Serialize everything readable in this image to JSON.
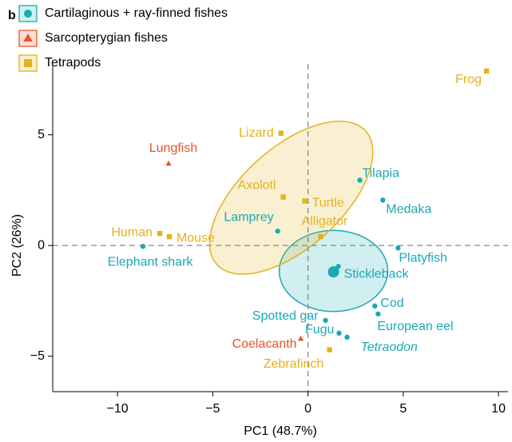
{
  "chart_data": {
    "type": "scatter",
    "panel_label": "b",
    "xlabel": "PC1 (48.7%)",
    "ylabel": "PC2 (26%)",
    "xlim": [
      -13.4,
      10.5
    ],
    "ylim": [
      -6.6,
      8.2
    ],
    "xticks": [
      {
        "value": -10,
        "label": "−10"
      },
      {
        "value": -5,
        "label": "−5"
      },
      0,
      5,
      10
    ],
    "yticks": [
      {
        "value": -5,
        "label": "−5"
      },
      0,
      5
    ],
    "ref_x": 0,
    "ref_y": 0,
    "series": [
      {
        "name": "Cartilaginous + ray-finned fishes",
        "color": "#1aa9b5",
        "marker": "circle",
        "labels": [
          "Tilapia",
          "Medaka",
          "Lamprey",
          "Elephant shark",
          "Platyfish",
          "Stickleback",
          null,
          "Cod",
          "European eel",
          "Spotted gar",
          "Fugu",
          "Tetraodon"
        ],
        "x": [
          2.72,
          3.93,
          -1.59,
          -8.66,
          4.73,
          1.34,
          1.59,
          3.51,
          3.68,
          0.92,
          1.63,
          2.05
        ],
        "y": [
          2.95,
          2.05,
          0.65,
          -0.04,
          -0.11,
          -1.19,
          -0.94,
          -2.73,
          -3.09,
          -3.38,
          -3.96,
          -4.14
        ],
        "sizes": [
          1,
          1,
          1,
          1,
          1,
          2.2,
          1,
          1,
          1,
          1,
          1,
          1
        ],
        "ellipse": {
          "cx": 1.34,
          "cy": -1.15,
          "a": 2.85,
          "b": 1.83,
          "angle": 0
        }
      },
      {
        "name": "Sarcopterygian fishes",
        "color": "#e8542a",
        "marker": "triangle",
        "labels": [
          "Lungfish",
          "Coelacanth"
        ],
        "x": [
          -7.32,
          -0.38
        ],
        "y": [
          3.7,
          -4.21
        ]
      },
      {
        "name": "Tetrapods",
        "color": "#e3b21c",
        "marker": "square",
        "labels": [
          "Frog",
          "Lizard",
          "Axolotl",
          "Turtle",
          "Alligator",
          "Human",
          "Mouse",
          "Zebrafinch"
        ],
        "x": [
          9.37,
          -1.42,
          -1.3,
          -0.17,
          0.67,
          -7.78,
          -7.28,
          1.13
        ],
        "y": [
          7.88,
          5.07,
          2.19,
          2.01,
          0.4,
          0.54,
          0.4,
          -4.71
        ],
        "ellipse": {
          "cx": -0.88,
          "cy": 2.16,
          "a": 4.95,
          "b": 2.4,
          "angle": 35
        }
      }
    ]
  }
}
